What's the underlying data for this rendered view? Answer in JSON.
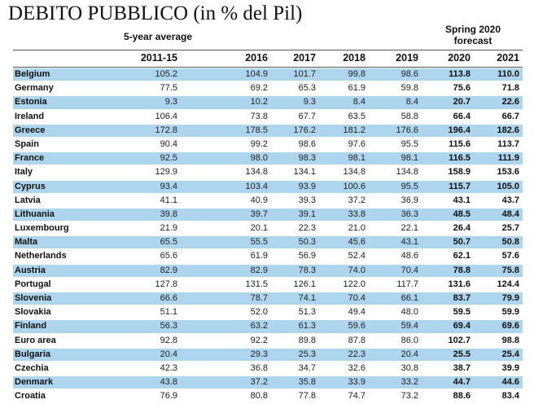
{
  "title": "DEBITO PUBBLICO (in % del Pil)",
  "average_label": "5-year average",
  "forecast_label_line1": "Spring 2020",
  "forecast_label_line2": "forecast",
  "colors": {
    "row_shade": "#aed5ee",
    "text": "#111111"
  },
  "chart_data": {
    "type": "table",
    "title": "DEBITO PUBBLICO (in % del Pil)",
    "columns": [
      "2011-15",
      "2016",
      "2017",
      "2018",
      "2019",
      "2020",
      "2021"
    ],
    "forecast_columns": [
      "2020",
      "2021"
    ],
    "rows": [
      {
        "country": "Belgium",
        "values": [
          "105.2",
          "104.9",
          "101.7",
          "99.8",
          "98.6",
          "113.8",
          "110.0"
        ],
        "shaded": true
      },
      {
        "country": "Germany",
        "values": [
          "77.5",
          "69.2",
          "65.3",
          "61.9",
          "59.8",
          "75.6",
          "71.8"
        ],
        "shaded": false
      },
      {
        "country": "Estonia",
        "values": [
          "9.3",
          "10.2",
          "9.3",
          "8.4",
          "8.4",
          "20.7",
          "22.6"
        ],
        "shaded": true
      },
      {
        "country": "Ireland",
        "values": [
          "106.4",
          "73.8",
          "67.7",
          "63.5",
          "58.8",
          "66.4",
          "66.7"
        ],
        "shaded": false
      },
      {
        "country": "Greece",
        "values": [
          "172.8",
          "178.5",
          "176.2",
          "181.2",
          "176.6",
          "196.4",
          "182.6"
        ],
        "shaded": true
      },
      {
        "country": "Spain",
        "values": [
          "90.4",
          "99.2",
          "98.6",
          "97.6",
          "95.5",
          "115.6",
          "113.7"
        ],
        "shaded": false
      },
      {
        "country": "France",
        "values": [
          "92.5",
          "98.0",
          "98.3",
          "98.1",
          "98.1",
          "116.5",
          "111.9"
        ],
        "shaded": true
      },
      {
        "country": "Italy",
        "values": [
          "129.9",
          "134.8",
          "134.1",
          "134.8",
          "134.8",
          "158.9",
          "153.6"
        ],
        "shaded": false
      },
      {
        "country": "Cyprus",
        "values": [
          "93.4",
          "103.4",
          "93.9",
          "100.6",
          "95.5",
          "115.7",
          "105.0"
        ],
        "shaded": true
      },
      {
        "country": "Latvia",
        "values": [
          "41.1",
          "40.9",
          "39.3",
          "37.2",
          "36.9",
          "43.1",
          "43.7"
        ],
        "shaded": false
      },
      {
        "country": "Lithuania",
        "values": [
          "39.8",
          "39.7",
          "39.1",
          "33.8",
          "36.3",
          "48.5",
          "48.4"
        ],
        "shaded": true
      },
      {
        "country": "Luxembourg",
        "values": [
          "21.9",
          "20.1",
          "22.3",
          "21.0",
          "22.1",
          "26.4",
          "25.7"
        ],
        "shaded": false
      },
      {
        "country": "Malta",
        "values": [
          "65.5",
          "55.5",
          "50.3",
          "45.6",
          "43.1",
          "50.7",
          "50.8"
        ],
        "shaded": true
      },
      {
        "country": "Netherlands",
        "values": [
          "65.6",
          "61.9",
          "56.9",
          "52.4",
          "48.6",
          "62.1",
          "57.6"
        ],
        "shaded": false
      },
      {
        "country": "Austria",
        "values": [
          "82.9",
          "82.9",
          "78.3",
          "74.0",
          "70.4",
          "78.8",
          "75.8"
        ],
        "shaded": true
      },
      {
        "country": "Portugal",
        "values": [
          "127.8",
          "131.5",
          "126.1",
          "122.0",
          "117.7",
          "131.6",
          "124.4"
        ],
        "shaded": false
      },
      {
        "country": "Slovenia",
        "values": [
          "66.6",
          "78.7",
          "74.1",
          "70.4",
          "66.1",
          "83.7",
          "79.9"
        ],
        "shaded": true
      },
      {
        "country": "Slovakia",
        "values": [
          "51.1",
          "52.0",
          "51.3",
          "49.4",
          "48.0",
          "59.5",
          "59.9"
        ],
        "shaded": false
      },
      {
        "country": "Finland",
        "values": [
          "56.3",
          "63.2",
          "61.3",
          "59.6",
          "59.4",
          "69.4",
          "69.6"
        ],
        "shaded": true
      },
      {
        "country": "Euro area",
        "values": [
          "92.8",
          "92.2",
          "89.8",
          "87.8",
          "86.0",
          "102.7",
          "98.8"
        ],
        "shaded": false
      },
      {
        "country": "Bulgaria",
        "values": [
          "20.4",
          "29.3",
          "25.3",
          "22.3",
          "20.4",
          "25.5",
          "25.4"
        ],
        "shaded": true
      },
      {
        "country": "Czechia",
        "values": [
          "42.3",
          "36.8",
          "34.7",
          "32.6",
          "30.8",
          "38.7",
          "39.9"
        ],
        "shaded": false
      },
      {
        "country": "Denmark",
        "values": [
          "43.8",
          "37.2",
          "35.8",
          "33.9",
          "33.2",
          "44.7",
          "44.6"
        ],
        "shaded": true
      },
      {
        "country": "Croatia",
        "values": [
          "76.9",
          "80.8",
          "77.8",
          "74.7",
          "73.2",
          "88.6",
          "83.4"
        ],
        "shaded": false
      }
    ]
  }
}
